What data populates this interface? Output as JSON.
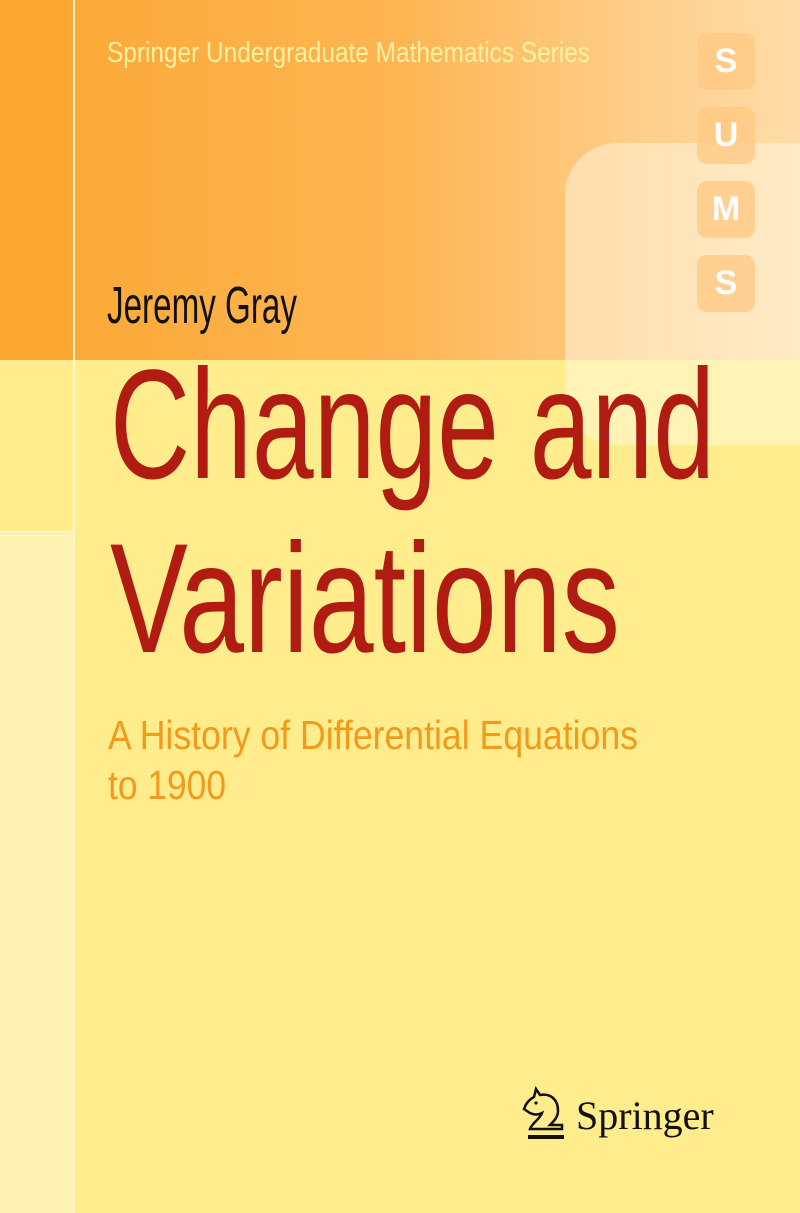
{
  "series": "Springer Undergraduate Mathematics Series",
  "series_badge": [
    "S",
    "U",
    "M",
    "S"
  ],
  "author": "Jeremy Gray",
  "title_lines": [
    "Change and",
    "Variations"
  ],
  "subtitle_lines": [
    "A History of Differential Equations",
    "to 1900"
  ],
  "publisher": {
    "name": "Springer",
    "logo_icon": "knight-horse-icon"
  },
  "colors": {
    "title": "#b01c12",
    "subtitle": "#f29a1c",
    "top_band": "#fcaa38",
    "background": "#ffec8c"
  }
}
